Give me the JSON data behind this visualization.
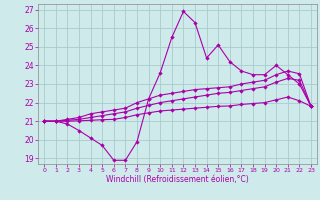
{
  "xlabel": "Windchill (Refroidissement éolien,°C)",
  "bg_color": "#ceeaea",
  "grid_color": "#aacccc",
  "line_color": "#aa00aa",
  "ylim": [
    18.7,
    27.3
  ],
  "xlim": [
    -0.5,
    23.5
  ],
  "yticks": [
    19,
    20,
    21,
    22,
    23,
    24,
    25,
    26,
    27
  ],
  "xticks": [
    0,
    1,
    2,
    3,
    4,
    5,
    6,
    7,
    8,
    9,
    10,
    11,
    12,
    13,
    14,
    15,
    16,
    17,
    18,
    19,
    20,
    21,
    22,
    23
  ],
  "hours": [
    0,
    1,
    2,
    3,
    4,
    5,
    6,
    7,
    8,
    9,
    10,
    11,
    12,
    13,
    14,
    15,
    16,
    17,
    18,
    19,
    20,
    21,
    22,
    23
  ],
  "line1": [
    21.0,
    21.0,
    20.85,
    20.5,
    20.1,
    19.7,
    18.9,
    18.9,
    19.9,
    22.2,
    23.6,
    25.5,
    26.9,
    26.3,
    24.4,
    25.1,
    24.2,
    23.7,
    23.5,
    23.5,
    24.0,
    23.5,
    23.0,
    21.8
  ],
  "line2": [
    21.0,
    21.0,
    21.1,
    21.2,
    21.4,
    21.5,
    21.6,
    21.7,
    22.0,
    22.2,
    22.4,
    22.5,
    22.6,
    22.7,
    22.75,
    22.8,
    22.85,
    23.0,
    23.1,
    23.2,
    23.5,
    23.7,
    23.55,
    21.8
  ],
  "line3": [
    21.0,
    21.0,
    21.05,
    21.1,
    21.2,
    21.3,
    21.4,
    21.5,
    21.7,
    21.85,
    22.0,
    22.1,
    22.2,
    22.3,
    22.4,
    22.5,
    22.55,
    22.65,
    22.75,
    22.85,
    23.1,
    23.3,
    23.2,
    21.8
  ],
  "line4": [
    21.0,
    21.0,
    21.0,
    21.02,
    21.05,
    21.08,
    21.1,
    21.2,
    21.35,
    21.45,
    21.55,
    21.6,
    21.65,
    21.7,
    21.75,
    21.8,
    21.82,
    21.9,
    21.95,
    22.0,
    22.15,
    22.3,
    22.1,
    21.8
  ]
}
